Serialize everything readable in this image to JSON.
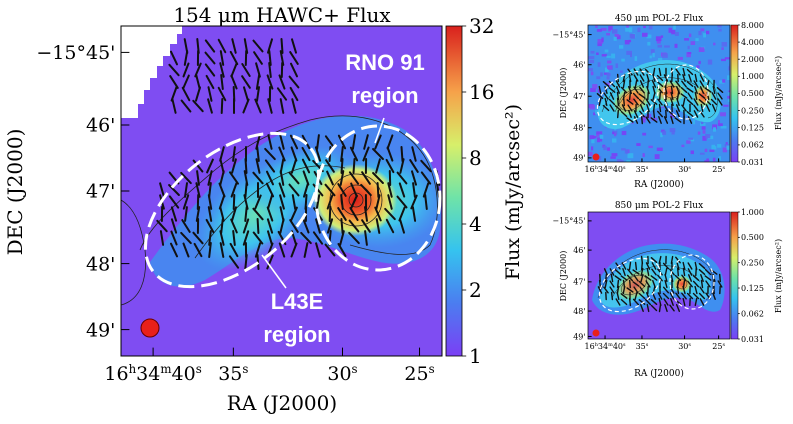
{
  "chart_data": [
    {
      "type": "heatmap",
      "title": "154 μm HAWC+ Flux",
      "xlabel": "RA (J2000)",
      "ylabel": "DEC (J2000)",
      "x_tick_labels": [
        "16h34m40s",
        "35s",
        "30s",
        "25s"
      ],
      "y_tick_labels": [
        "−15°45'",
        "46'",
        "47'",
        "48'",
        "49'"
      ],
      "colorbar": {
        "label": "Flux (mJy/arcsec²)",
        "scale": "log",
        "range": [
          1,
          32
        ],
        "tick_labels": [
          "32",
          "16",
          "8",
          "4",
          "2",
          "1"
        ]
      },
      "annotations": [
        "RNO 91",
        "region",
        "L43E",
        "region"
      ],
      "regions": [
        {
          "name": "L43E region",
          "shape": "dashed ellipse"
        },
        {
          "name": "RNO 91 region",
          "shape": "dashed ellipse"
        }
      ],
      "beam": "filled red circle"
    },
    {
      "type": "heatmap",
      "title": "450 μm POL-2 Flux",
      "xlabel": "RA (J2000)",
      "ylabel": "DEC (J2000)",
      "x_tick_labels": [
        "16h34m40s",
        "35s",
        "30s",
        "25s"
      ],
      "y_tick_labels": [
        "−15°45'",
        "46'",
        "47'",
        "48'",
        "49'"
      ],
      "colorbar": {
        "label": "Flux (mJy/arcsec²)",
        "scale": "log",
        "range": [
          0.031,
          8.0
        ],
        "tick_labels": [
          "8.000",
          "4.000",
          "2.000",
          "1.000",
          "0.500",
          "0.250",
          "0.125",
          "0.062",
          "0.031"
        ]
      }
    },
    {
      "type": "heatmap",
      "title": "850 μm POL-2 Flux",
      "xlabel": "RA (J2000)",
      "ylabel": "DEC (J2000)",
      "x_tick_labels": [
        "16h34m40s",
        "35s",
        "30s",
        "25s"
      ],
      "y_tick_labels": [
        "−15°45'",
        "46'",
        "47'",
        "48'",
        "49'"
      ],
      "colorbar": {
        "label": "Flux (mJy/arcsec²)",
        "scale": "log",
        "range": [
          0.031,
          1.0
        ],
        "tick_labels": [
          "1.000",
          "0.500",
          "0.250",
          "0.125",
          "0.062",
          "0.031"
        ]
      }
    }
  ],
  "colors": {
    "background_map": "#7f4df2",
    "region_outline": "#ffffff",
    "beam": "#e8201a",
    "vectors": "#111111"
  }
}
